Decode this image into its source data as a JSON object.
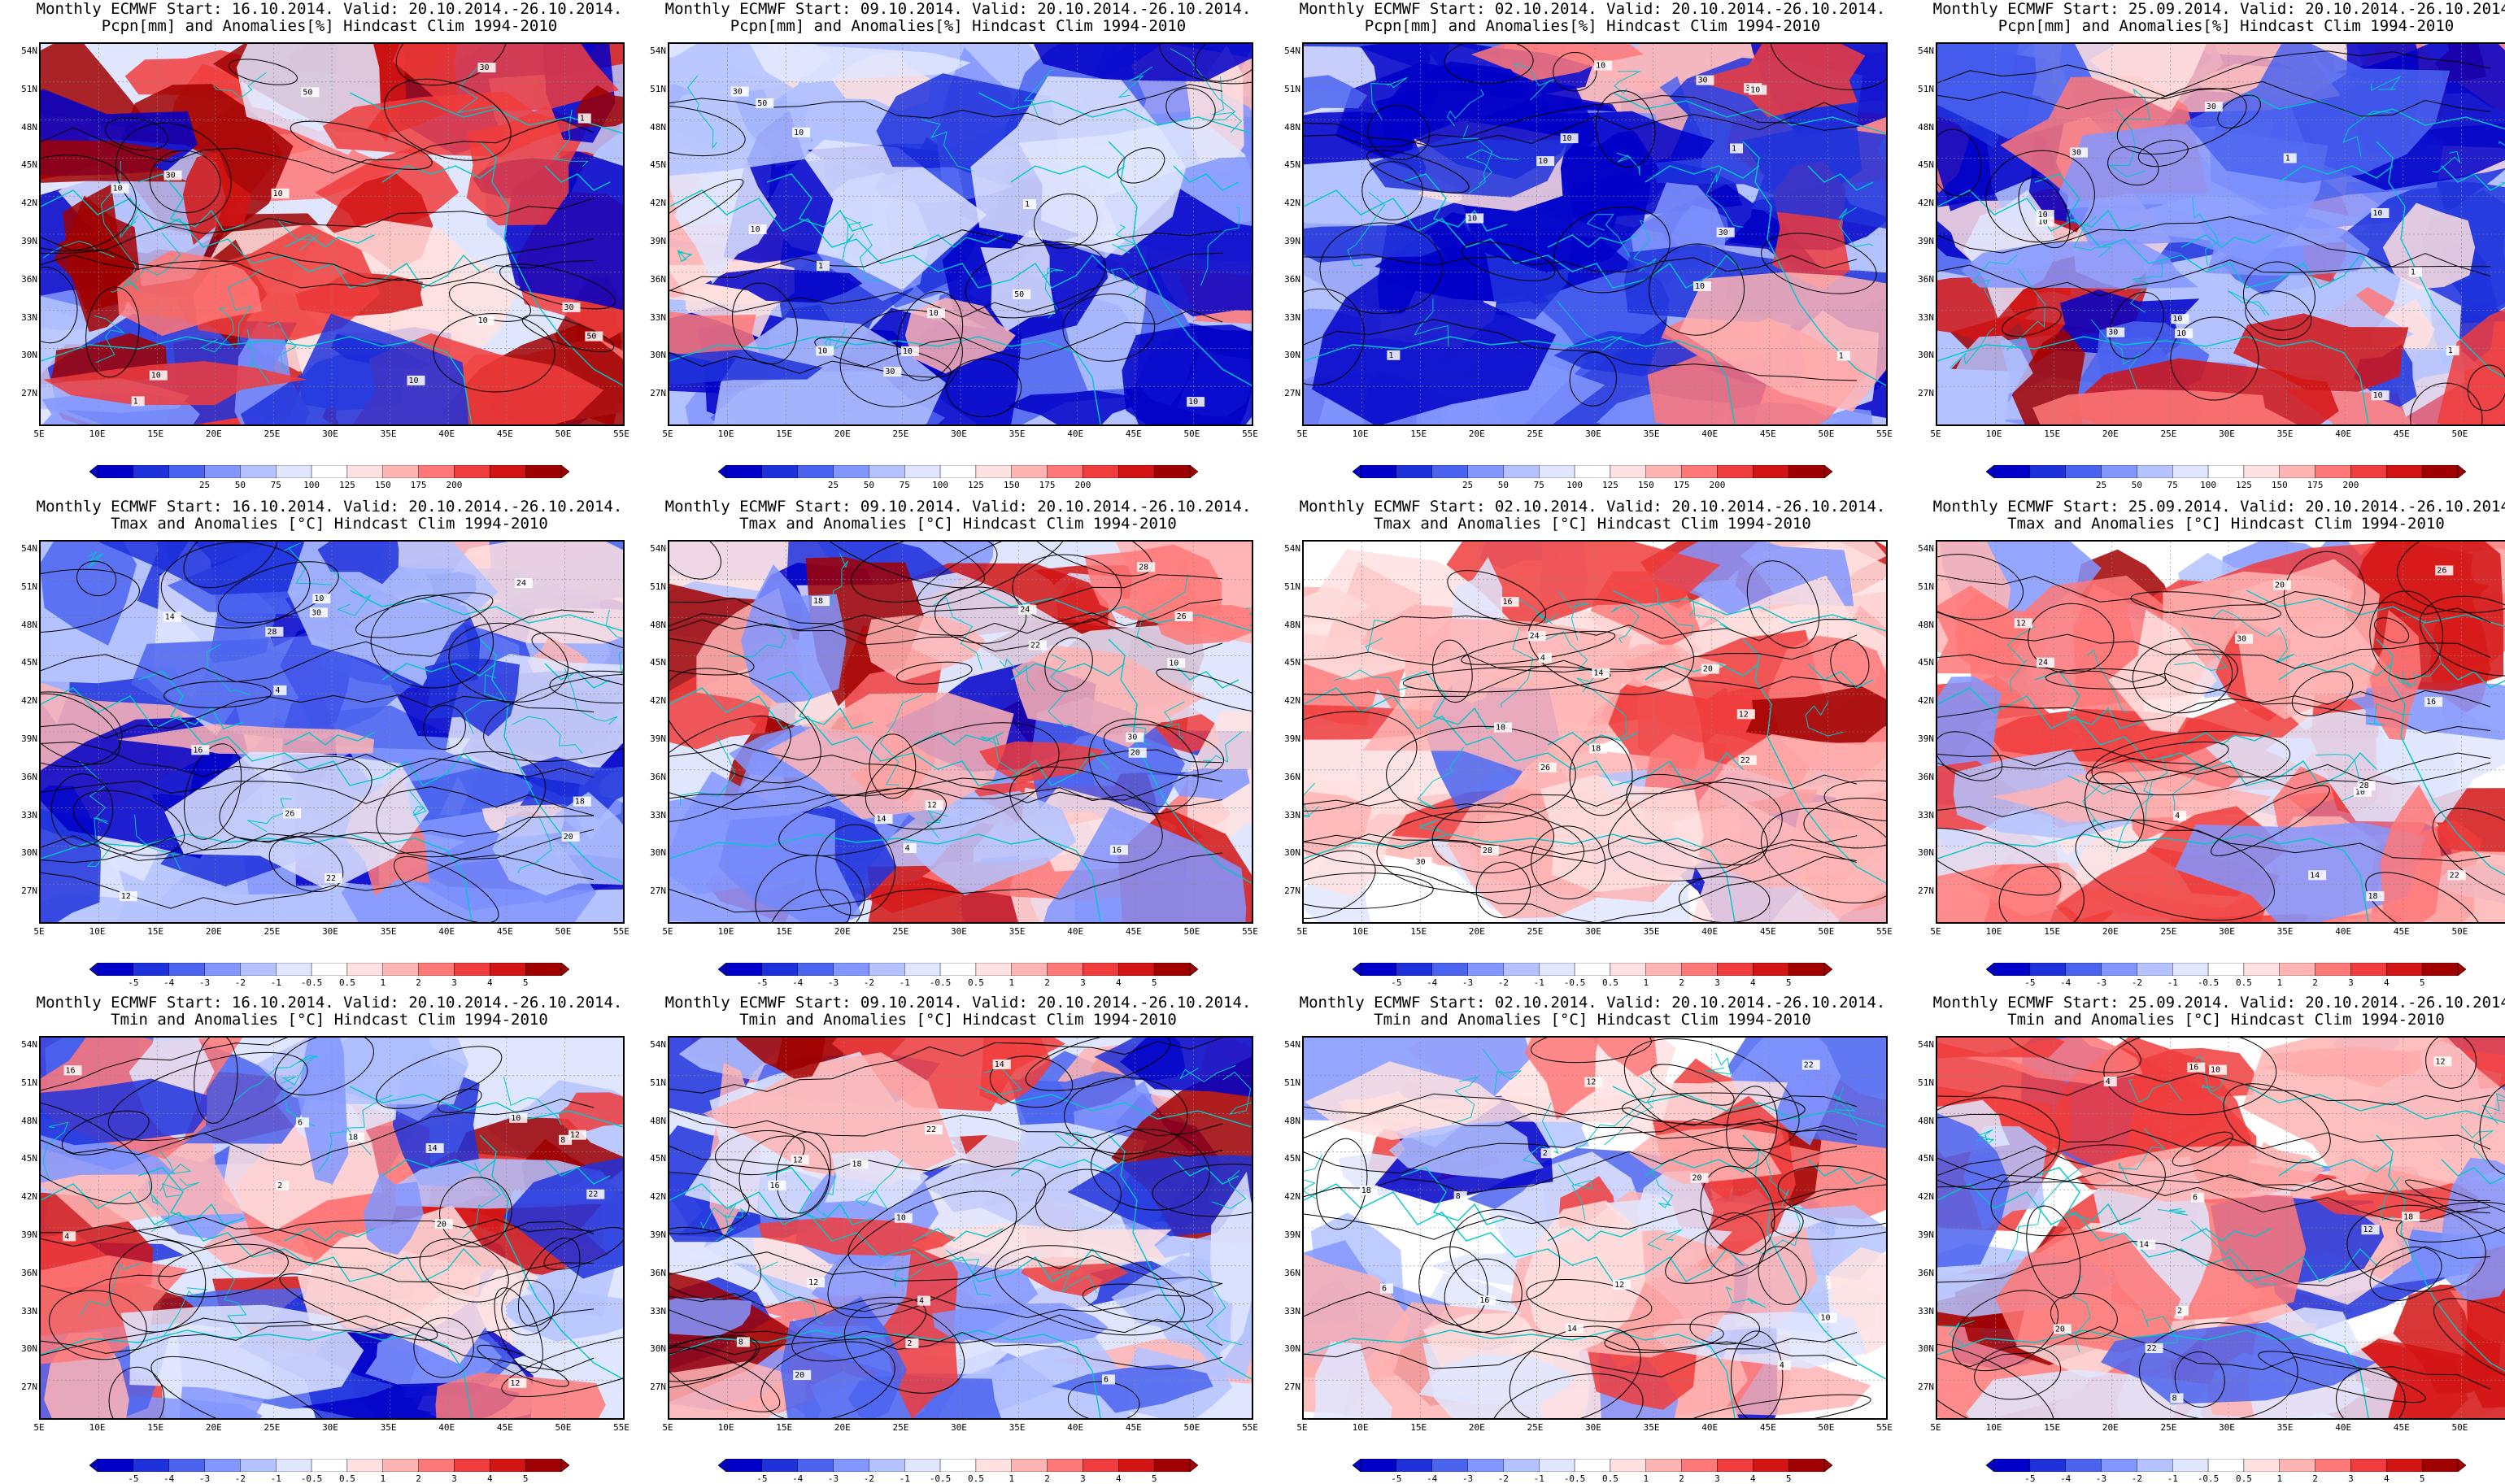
{
  "start_dates": [
    "16.10.2014",
    "09.10.2014",
    "02.10.2014",
    "25.09.2014"
  ],
  "rows": [
    {
      "title1": [
        "Monthly ECMWF Start: 16.10.2014. Valid: 20.10.2014.-26.10.2014.",
        "Monthly ECMWF Start: 09.10.2014. Valid: 20.10.2014.-26.10.2014.",
        "Monthly ECMWF Start: 02.10.2014. Valid: 20.10.2014.-26.10.2014.",
        "Monthly ECMWF Start: 25.09.2014. Valid: 20.10.2014.-26.10.2014."
      ],
      "title2": "Pcpn[mm] and Anomalies[%] Hindcast Clim 1994-2010",
      "variable": "precipitation",
      "colorbar_ticks": [
        "25",
        "50",
        "75",
        "100",
        "125",
        "150",
        "175",
        "200"
      ],
      "colorbar_colors": [
        "#0000c8",
        "#1e32dc",
        "#4b64f0",
        "#8296ff",
        "#b4c3ff",
        "#e1e6ff",
        "#ffffff",
        "#ffe1e1",
        "#ffb4b4",
        "#ff7878",
        "#f03c3c",
        "#d21414",
        "#a00000"
      ],
      "contour_labels": [
        [
          "10",
          "30",
          "10",
          "50",
          "10",
          "1",
          "30",
          "50",
          "10",
          "1",
          "30",
          "10"
        ],
        [
          "10",
          "30",
          "10",
          "50",
          "10",
          "1",
          "30",
          "50",
          "10",
          "1",
          "10",
          "10"
        ],
        [
          "10",
          "30",
          "10",
          "1",
          "30",
          "10",
          "1",
          "10",
          "30",
          "1",
          "10",
          "10"
        ],
        [
          "10",
          "30",
          "10",
          "1",
          "30",
          "10",
          "1",
          "10",
          "30",
          "1",
          "10",
          "10"
        ]
      ],
      "dominant_tone": [
        "mixed-red-north-blue-south",
        "blue",
        "blue",
        "blue-with-red-southeast"
      ]
    },
    {
      "title1": [
        "Monthly ECMWF Start: 16.10.2014. Valid: 20.10.2014.-26.10.2014.",
        "Monthly ECMWF Start: 09.10.2014. Valid: 20.10.2014.-26.10.2014.",
        "Monthly ECMWF Start: 02.10.2014. Valid: 20.10.2014.-26.10.2014.",
        "Monthly ECMWF Start: 25.09.2014. Valid: 20.10.2014.-26.10.2014."
      ],
      "title2": "Tmax and Anomalies [°C] Hindcast Clim 1994-2010",
      "variable": "tmax",
      "colorbar_ticks": [
        "-5",
        "-4",
        "-3",
        "-2",
        "-1",
        "-0.5",
        "0.5",
        "1",
        "2",
        "3",
        "4",
        "5"
      ],
      "colorbar_colors": [
        "#0000c8",
        "#1e32dc",
        "#4b64f0",
        "#8296ff",
        "#b4c3ff",
        "#e1e6ff",
        "#ffffff",
        "#ffe1e1",
        "#ffb4b4",
        "#ff7878",
        "#f03c3c",
        "#d21414",
        "#a00000"
      ],
      "contour_labels": [
        [
          "4",
          "10",
          "12",
          "14",
          "16",
          "18",
          "20",
          "22",
          "24",
          "26",
          "28",
          "30"
        ],
        [
          "4",
          "10",
          "12",
          "14",
          "16",
          "18",
          "20",
          "22",
          "24",
          "26",
          "28",
          "30"
        ],
        [
          "4",
          "10",
          "12",
          "14",
          "16",
          "18",
          "20",
          "22",
          "24",
          "26",
          "28",
          "30"
        ],
        [
          "4",
          "10",
          "12",
          "14",
          "16",
          "18",
          "20",
          "22",
          "24",
          "26",
          "28",
          "30"
        ]
      ],
      "dominant_tone": [
        "blue",
        "red-west-blue-east",
        "light-red",
        "light-red"
      ]
    },
    {
      "title1": [
        "Monthly ECMWF Start: 16.10.2014. Valid: 20.10.2014.-26.10.2014.",
        "Monthly ECMWF Start: 09.10.2014. Valid: 20.10.2014.-26.10.2014.",
        "Monthly ECMWF Start: 02.10.2014. Valid: 20.10.2014.-26.10.2014.",
        "Monthly ECMWF Start: 25.09.2014. Valid: 20.10.2014.-26.10.2014."
      ],
      "title2": "Tmin and Anomalies [°C] Hindcast Clim 1994-2010",
      "variable": "tmin",
      "colorbar_ticks": [
        "-5",
        "-4",
        "-3",
        "-2",
        "-1",
        "-0.5",
        "0.5",
        "1",
        "2",
        "3",
        "4",
        "5"
      ],
      "colorbar_colors": [
        "#0000c8",
        "#1e32dc",
        "#4b64f0",
        "#8296ff",
        "#b4c3ff",
        "#e1e6ff",
        "#ffffff",
        "#ffe1e1",
        "#ffb4b4",
        "#ff7878",
        "#f03c3c",
        "#d21414",
        "#a00000"
      ],
      "contour_labels": [
        [
          "2",
          "4",
          "6",
          "8",
          "10",
          "12",
          "14",
          "16",
          "18",
          "20",
          "22",
          "12"
        ],
        [
          "2",
          "4",
          "6",
          "8",
          "10",
          "12",
          "14",
          "16",
          "18",
          "20",
          "22",
          "12"
        ],
        [
          "2",
          "4",
          "6",
          "8",
          "10",
          "12",
          "14",
          "16",
          "18",
          "20",
          "22",
          "12"
        ],
        [
          "2",
          "4",
          "6",
          "8",
          "10",
          "12",
          "14",
          "16",
          "18",
          "20",
          "22",
          "12"
        ]
      ],
      "dominant_tone": [
        "red-northwest-blue-east",
        "red-northwest-blue-east",
        "mixed",
        "light-red"
      ]
    }
  ],
  "lat_labels": [
    "54N",
    "51N",
    "48N",
    "45N",
    "42N",
    "39N",
    "36N",
    "33N",
    "30N",
    "27N"
  ],
  "lon_labels": [
    "5E",
    "10E",
    "15E",
    "20E",
    "25E",
    "30E",
    "35E",
    "40E",
    "45E",
    "50E",
    "55E"
  ],
  "colors": {
    "coastline": "#00c8c8",
    "contour": "#000000",
    "grid": "#888888"
  }
}
